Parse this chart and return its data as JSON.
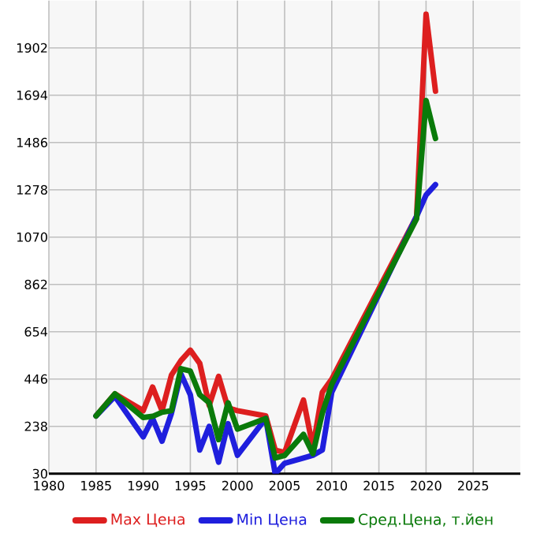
{
  "chart_data": {
    "type": "line",
    "x": [
      1985,
      1987,
      1990,
      1991,
      1992,
      1993,
      1994,
      1995,
      1996,
      1997,
      1998,
      1999,
      2000,
      2003,
      2004,
      2005,
      2007,
      2008,
      2009,
      2010,
      2019,
      2020,
      2021
    ],
    "series": [
      {
        "name": "Max Цена",
        "color": "#dd1f1f",
        "values": [
          284,
          381,
          307,
          411,
          307,
          464,
          527,
          573,
          515,
          330,
          458,
          319,
          307,
          284,
          134,
          123,
          354,
          146,
          388,
          446,
          1162,
          2050,
          1712
        ]
      },
      {
        "name": "Min Цена",
        "color": "#1f1fdd",
        "values": [
          284,
          370,
          192,
          273,
          173,
          296,
          469,
          377,
          134,
          238,
          81,
          250,
          111,
          273,
          30,
          76,
          99,
          111,
          134,
          388,
          1162,
          1255,
          1301
        ]
      },
      {
        "name": "Сред.Цена, т.йен",
        "color": "#0a7a0a",
        "values": [
          284,
          381,
          277,
          282,
          300,
          307,
          492,
          481,
          377,
          342,
          180,
          342,
          226,
          273,
          99,
          110,
          203,
          118,
          296,
          423,
          1151,
          1671,
          1504
        ]
      }
    ],
    "xlim": [
      1980,
      2030
    ],
    "ylim": [
      30,
      2110
    ],
    "xticks": [
      1980,
      1985,
      1990,
      1995,
      2000,
      2005,
      2010,
      2015,
      2020,
      2025
    ],
    "yticks": [
      30,
      238,
      446,
      654,
      862,
      1070,
      1278,
      1486,
      1694,
      1902
    ],
    "grid": true,
    "legend": "bottom",
    "marker": "none",
    "line_style": "solid"
  }
}
